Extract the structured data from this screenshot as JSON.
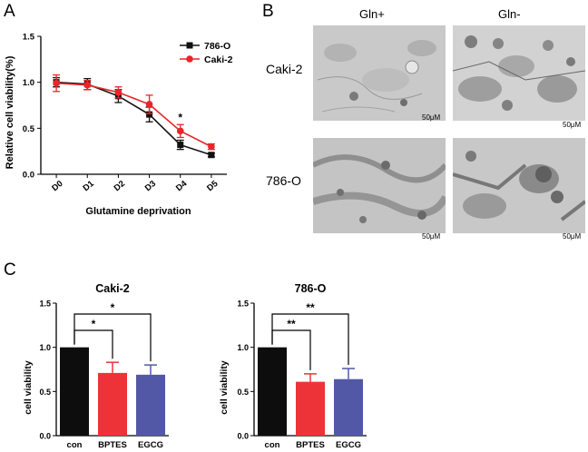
{
  "panel_labels": {
    "a": "A",
    "b": "B",
    "c": "C"
  },
  "chart_data": [
    {
      "type": "line",
      "id": "A",
      "title": "",
      "xlabel": "Glutamine deprivation",
      "ylabel": "Relative cell viability(%)",
      "categories": [
        "D0",
        "D1",
        "D2",
        "D3",
        "D4",
        "D5"
      ],
      "ylim": [
        0.0,
        1.5
      ],
      "yticks": [
        "0.0",
        "0.5",
        "1.0",
        "1.5"
      ],
      "legend_position": "top-right",
      "series": [
        {
          "name": "786-O",
          "color": "#111111",
          "marker": "square",
          "values": [
            1.0,
            0.98,
            0.85,
            0.65,
            0.32,
            0.21
          ],
          "errors": [
            0.05,
            0.06,
            0.07,
            0.08,
            0.05,
            0.02
          ]
        },
        {
          "name": "Caki-2",
          "color": "#e8262a",
          "marker": "circle",
          "values": [
            0.99,
            0.97,
            0.89,
            0.76,
            0.47,
            0.3
          ],
          "errors": [
            0.09,
            0.05,
            0.06,
            0.1,
            0.07,
            0.03
          ]
        }
      ],
      "annotations": [
        {
          "text": "*",
          "category": "D4"
        }
      ]
    },
    {
      "type": "bar",
      "id": "C1",
      "title": "Caki-2",
      "ylabel": "cell viability",
      "xlabel": "",
      "categories": [
        "con",
        "BPTES",
        "EGCG"
      ],
      "values": [
        1.0,
        0.71,
        0.69
      ],
      "errors": [
        0,
        0.12,
        0.11
      ],
      "colors": [
        "#0d0d0d",
        "#ee3338",
        "#5258a6"
      ],
      "ylim": [
        0.0,
        1.5
      ],
      "yticks": [
        "0.0",
        "0.5",
        "1.0",
        "1.5"
      ],
      "significance": [
        {
          "from": "con",
          "to": "BPTES",
          "text": "*"
        },
        {
          "from": "con",
          "to": "EGCG",
          "text": "*"
        }
      ]
    },
    {
      "type": "bar",
      "id": "C2",
      "title": "786-O",
      "ylabel": "cell viability",
      "xlabel": "",
      "categories": [
        "con",
        "BPTES",
        "EGCG"
      ],
      "values": [
        1.0,
        0.61,
        0.64
      ],
      "errors": [
        0,
        0.09,
        0.12
      ],
      "colors": [
        "#0d0d0d",
        "#ee3338",
        "#5258a6"
      ],
      "ylim": [
        0.0,
        1.5
      ],
      "yticks": [
        "0.0",
        "0.5",
        "1.0",
        "1.5"
      ],
      "significance": [
        {
          "from": "con",
          "to": "BPTES",
          "text": "**"
        },
        {
          "from": "con",
          "to": "EGCG",
          "text": "**"
        }
      ]
    }
  ],
  "micrographs": {
    "columns": [
      "Gln+",
      "Gln-"
    ],
    "rows": [
      "Caki-2",
      "786-O"
    ],
    "scale_bar": "50μM"
  }
}
